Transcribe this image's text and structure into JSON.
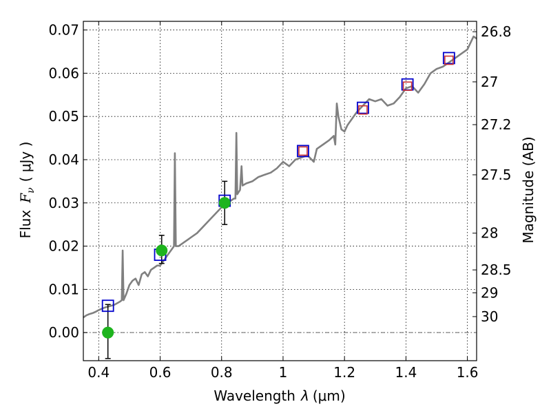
{
  "chart_data": {
    "type": "line",
    "xlabel": "Wavelength",
    "xlabel_symbol": "λ",
    "xlabel_unit": "(μm)",
    "ylabel": "Flux",
    "ylabel_symbol": "F",
    "ylabel_sub": "ν",
    "ylabel_unit": "( μJy )",
    "y2label": "Magnitude (AB)",
    "xlim": [
      0.35,
      1.63
    ],
    "ylim": [
      -0.0065,
      0.072
    ],
    "xticks": [
      0.4,
      0.6,
      0.8,
      1.0,
      1.2,
      1.4,
      1.6
    ],
    "xtick_labels": [
      "0.4",
      "0.6",
      "0.8",
      "1",
      "1.2",
      "1.4",
      "1.6"
    ],
    "yticks": [
      0.0,
      0.01,
      0.02,
      0.03,
      0.04,
      0.05,
      0.06,
      0.07
    ],
    "ytick_labels": [
      "0.00",
      "0.01",
      "0.02",
      "0.03",
      "0.04",
      "0.05",
      "0.06",
      "0.07"
    ],
    "right_ticks": [
      {
        "label": "26.8",
        "flux": 0.0696
      },
      {
        "label": "27",
        "flux": 0.058
      },
      {
        "label": "27.2",
        "flux": 0.0481
      },
      {
        "label": "27.5",
        "flux": 0.0365
      },
      {
        "label": "28",
        "flux": 0.023
      },
      {
        "label": "28.5",
        "flux": 0.0145
      },
      {
        "label": "29",
        "flux": 0.0092
      },
      {
        "label": "30",
        "flux": 0.0037
      }
    ],
    "series": [
      {
        "name": "model spectrum",
        "color": "#808080",
        "points": [
          [
            0.35,
            0.0035
          ],
          [
            0.36,
            0.004
          ],
          [
            0.37,
            0.0043
          ],
          [
            0.38,
            0.0045
          ],
          [
            0.39,
            0.0048
          ],
          [
            0.4,
            0.0052
          ],
          [
            0.41,
            0.0055
          ],
          [
            0.42,
            0.0058
          ],
          [
            0.43,
            0.006
          ],
          [
            0.44,
            0.0062
          ],
          [
            0.45,
            0.0064
          ],
          [
            0.46,
            0.0068
          ],
          [
            0.47,
            0.0072
          ],
          [
            0.475,
            0.0075
          ],
          [
            0.478,
            0.019
          ],
          [
            0.481,
            0.0075
          ],
          [
            0.49,
            0.009
          ],
          [
            0.5,
            0.011
          ],
          [
            0.51,
            0.012
          ],
          [
            0.52,
            0.0125
          ],
          [
            0.53,
            0.011
          ],
          [
            0.54,
            0.0135
          ],
          [
            0.55,
            0.014
          ],
          [
            0.56,
            0.013
          ],
          [
            0.57,
            0.0145
          ],
          [
            0.58,
            0.015
          ],
          [
            0.59,
            0.0155
          ],
          [
            0.6,
            0.0155
          ],
          [
            0.61,
            0.0165
          ],
          [
            0.62,
            0.0175
          ],
          [
            0.63,
            0.0185
          ],
          [
            0.64,
            0.0195
          ],
          [
            0.645,
            0.02
          ],
          [
            0.648,
            0.0415
          ],
          [
            0.651,
            0.02
          ],
          [
            0.66,
            0.02
          ],
          [
            0.67,
            0.0205
          ],
          [
            0.68,
            0.021
          ],
          [
            0.69,
            0.0215
          ],
          [
            0.7,
            0.022
          ],
          [
            0.72,
            0.023
          ],
          [
            0.74,
            0.0245
          ],
          [
            0.76,
            0.026
          ],
          [
            0.78,
            0.0275
          ],
          [
            0.8,
            0.029
          ],
          [
            0.81,
            0.0295
          ],
          [
            0.82,
            0.03
          ],
          [
            0.83,
            0.0305
          ],
          [
            0.84,
            0.031
          ],
          [
            0.845,
            0.031
          ],
          [
            0.848,
            0.0462
          ],
          [
            0.851,
            0.032
          ],
          [
            0.86,
            0.033
          ],
          [
            0.865,
            0.0385
          ],
          [
            0.868,
            0.034
          ],
          [
            0.88,
            0.0345
          ],
          [
            0.9,
            0.035
          ],
          [
            0.92,
            0.036
          ],
          [
            0.94,
            0.0365
          ],
          [
            0.96,
            0.037
          ],
          [
            0.98,
            0.038
          ],
          [
            1.0,
            0.0395
          ],
          [
            1.02,
            0.0385
          ],
          [
            1.04,
            0.04
          ],
          [
            1.06,
            0.0405
          ],
          [
            1.08,
            0.041
          ],
          [
            1.1,
            0.0395
          ],
          [
            1.11,
            0.0425
          ],
          [
            1.13,
            0.0435
          ],
          [
            1.15,
            0.0445
          ],
          [
            1.165,
            0.0455
          ],
          [
            1.17,
            0.0435
          ],
          [
            1.175,
            0.053
          ],
          [
            1.18,
            0.05
          ],
          [
            1.19,
            0.047
          ],
          [
            1.2,
            0.0465
          ],
          [
            1.21,
            0.048
          ],
          [
            1.22,
            0.049
          ],
          [
            1.24,
            0.051
          ],
          [
            1.26,
            0.0525
          ],
          [
            1.28,
            0.054
          ],
          [
            1.3,
            0.0535
          ],
          [
            1.32,
            0.054
          ],
          [
            1.34,
            0.0525
          ],
          [
            1.36,
            0.053
          ],
          [
            1.38,
            0.0545
          ],
          [
            1.4,
            0.0565
          ],
          [
            1.42,
            0.057
          ],
          [
            1.44,
            0.0555
          ],
          [
            1.46,
            0.0575
          ],
          [
            1.48,
            0.06
          ],
          [
            1.5,
            0.061
          ],
          [
            1.52,
            0.0615
          ],
          [
            1.54,
            0.0625
          ],
          [
            1.56,
            0.0635
          ],
          [
            1.58,
            0.0645
          ],
          [
            1.6,
            0.0655
          ],
          [
            1.62,
            0.0685
          ],
          [
            1.63,
            0.068
          ]
        ]
      },
      {
        "name": "model photometry",
        "marker": "open-square",
        "color": "#0000cc",
        "points": [
          [
            0.43,
            0.0062
          ],
          [
            0.6,
            0.018
          ],
          [
            0.81,
            0.0305
          ],
          [
            1.065,
            0.042
          ],
          [
            1.26,
            0.052
          ],
          [
            1.405,
            0.0574
          ],
          [
            1.54,
            0.0635
          ]
        ]
      },
      {
        "name": "observed (red)",
        "marker": "open-square",
        "color": "#cc3333",
        "points": [
          [
            1.065,
            0.042
          ],
          [
            1.26,
            0.0515
          ],
          [
            1.405,
            0.057
          ],
          [
            1.54,
            0.063
          ]
        ]
      },
      {
        "name": "observed",
        "marker": "filled-circle",
        "color": "#1eb41e",
        "points": [
          [
            0.43,
            0.0
          ],
          [
            0.605,
            0.019
          ],
          [
            0.81,
            0.03
          ]
        ],
        "errors": [
          [
            -0.006,
            0.0065
          ],
          [
            0.016,
            0.0225
          ],
          [
            0.025,
            0.035
          ]
        ]
      }
    ],
    "hline": {
      "y": 0.0,
      "style": "dash-dot",
      "color": "#666666"
    }
  }
}
